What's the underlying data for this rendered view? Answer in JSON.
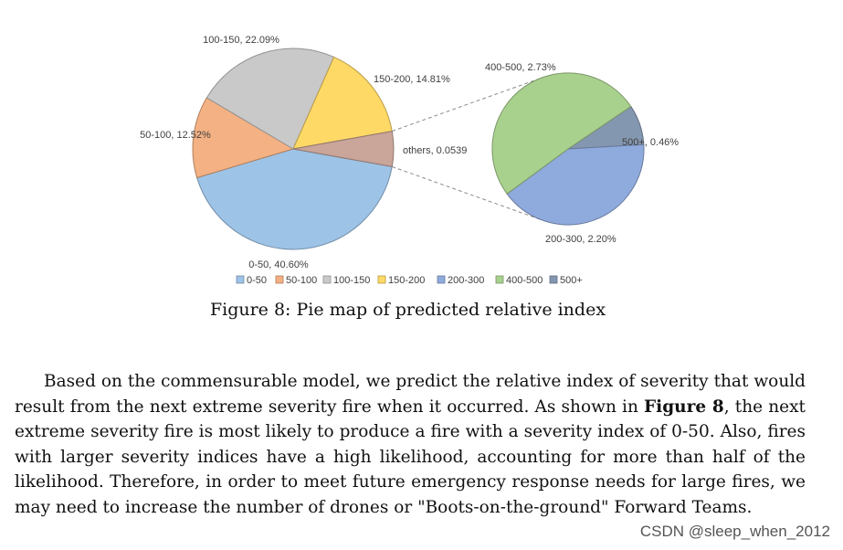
{
  "chart_data": {
    "type": "pie",
    "subtype": "pie-of-pie",
    "title": "",
    "main_pie": [
      {
        "label": "0-50",
        "value": 40.6,
        "display": "0-50, 40.60%",
        "color": "#9dc3e6"
      },
      {
        "label": "50-100",
        "value": 12.52,
        "display": "50-100, 12.52%",
        "color": "#f4b183"
      },
      {
        "label": "100-150",
        "value": 22.09,
        "display": "100-150, 22.09%",
        "color": "#c9c9c9"
      },
      {
        "label": "150-200",
        "value": 14.81,
        "display": "150-200, 14.81%",
        "color": "#ffd966"
      },
      {
        "label": "others",
        "value": 5.39,
        "display": "others, 0.0539",
        "color": "#c9a59a"
      }
    ],
    "secondary_pie": [
      {
        "label": "200-300",
        "value": 2.2,
        "display": "200-300, 2.20%",
        "color": "#8faadc"
      },
      {
        "label": "400-500",
        "value": 2.73,
        "display": "400-500, 2.73%",
        "color": "#a9d18e"
      },
      {
        "label": "500+",
        "value": 0.46,
        "display": "500+, 0.46%",
        "color": "#8497b0"
      }
    ],
    "legend": [
      {
        "label": "0-50",
        "color": "#9dc3e6"
      },
      {
        "label": "50-100",
        "color": "#f4b183"
      },
      {
        "label": "100-150",
        "color": "#c9c9c9"
      },
      {
        "label": "150-200",
        "color": "#ffd966"
      },
      {
        "label": "200-300",
        "color": "#8faadc"
      },
      {
        "label": "400-500",
        "color": "#a9d18e"
      },
      {
        "label": "500+",
        "color": "#8497b0"
      }
    ],
    "legend_position": "bottom"
  },
  "caption": "Figure 8: Pie map of predicted relative index",
  "paragraph": {
    "part1": "Based on the commensurable model, we predict the relative index of severity that would result from the next extreme severity fire when it occurred. As shown in ",
    "bold": "Figure 8",
    "part2": ", the next extreme severity fire is most likely to produce a fire with a severity index of 0-50. Also, fires with larger severity indices have a high likelihood, accounting for more than half of the likelihood. Therefore, in order to meet future emergency response needs for large fires, we may need to increase the number of drones or \"Boots-on-the-ground\" Forward Teams."
  },
  "watermark": "CSDN @sleep_when_2012"
}
